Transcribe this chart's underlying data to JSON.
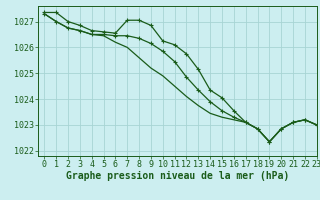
{
  "bg_color": "#cceef0",
  "grid_color": "#a8d4d4",
  "line_color": "#1a5c1a",
  "xlabel": "Graphe pression niveau de la mer (hPa)",
  "xlabel_fontsize": 7,
  "tick_fontsize": 6,
  "xlim": [
    -0.5,
    23
  ],
  "ylim": [
    1021.8,
    1027.6
  ],
  "yticks": [
    1022,
    1023,
    1024,
    1025,
    1026,
    1027
  ],
  "xticks": [
    0,
    1,
    2,
    3,
    4,
    5,
    6,
    7,
    8,
    9,
    10,
    11,
    12,
    13,
    14,
    15,
    16,
    17,
    18,
    19,
    20,
    21,
    22,
    23
  ],
  "series1_y": [
    1027.35,
    1027.35,
    1027.0,
    1026.85,
    1026.65,
    1026.6,
    1026.55,
    1027.05,
    1027.05,
    1026.85,
    1026.25,
    1026.1,
    1025.75,
    1025.15,
    1024.35,
    1024.05,
    1023.55,
    1023.1,
    1022.85,
    1022.35,
    1022.85,
    1023.1,
    1023.2,
    1023.0
  ],
  "series2_y": [
    1027.3,
    1027.0,
    1026.75,
    1026.65,
    1026.5,
    1026.5,
    1026.45,
    1026.45,
    1026.35,
    1026.15,
    1025.85,
    1025.45,
    1024.85,
    1024.35,
    1023.9,
    1023.55,
    1023.3,
    1023.1,
    1022.85,
    1022.35,
    1022.85,
    1023.1,
    1023.2,
    1023.0
  ],
  "series3_y": [
    1027.3,
    1027.0,
    1026.75,
    1026.65,
    1026.5,
    1026.45,
    1026.2,
    1026.0,
    1025.6,
    1025.2,
    1024.9,
    1024.5,
    1024.1,
    1023.75,
    1023.45,
    1023.3,
    1023.2,
    1023.1,
    1022.85,
    1022.35,
    1022.85,
    1023.1,
    1023.2,
    1023.0
  ]
}
